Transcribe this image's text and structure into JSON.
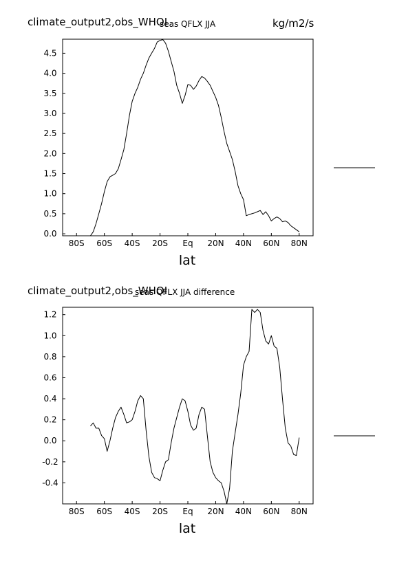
{
  "chart_data": [
    {
      "type": "line",
      "title": "climate_output2,obs_WHOI",
      "subtitle": "seas QFLX JJA",
      "units": "kg/m2/s",
      "xlabel": "lat",
      "ylabel": "",
      "xlim": [
        -90,
        90
      ],
      "ylim": [
        -0.05,
        4.85
      ],
      "xticks": [
        -80,
        -60,
        -40,
        -20,
        0,
        20,
        40,
        60,
        80
      ],
      "xticklabels": [
        "80S",
        "60S",
        "40S",
        "20S",
        "Eq",
        "20N",
        "40N",
        "60N",
        "80N"
      ],
      "yticks": [
        0,
        0.5,
        1,
        1.5,
        2,
        2.5,
        3,
        3.5,
        4,
        4.5
      ],
      "yticklabels": [
        "0.0",
        "0.5",
        "1.0",
        "1.5",
        "2.0",
        "2.5",
        "3.0",
        "3.5",
        "4.0",
        "4.5"
      ],
      "legend": "right",
      "series": [
        {
          "x": [
            -70,
            -68,
            -66,
            -64,
            -62,
            -60,
            -58,
            -56,
            -54,
            -52,
            -50,
            -48,
            -46,
            -44,
            -42,
            -40,
            -38,
            -36,
            -34,
            -32,
            -30,
            -28,
            -26,
            -24,
            -22,
            -20,
            -18,
            -16,
            -14,
            -12,
            -10,
            -8,
            -6,
            -4,
            -2,
            0,
            2,
            4,
            6,
            8,
            10,
            12,
            14,
            16,
            18,
            20,
            22,
            24,
            26,
            28,
            30,
            32,
            34,
            36,
            38,
            40,
            42,
            44,
            46,
            48,
            50,
            52,
            54,
            56,
            58,
            60,
            62,
            64,
            66,
            68,
            70,
            72,
            74,
            76,
            78,
            80
          ],
          "values": [
            -0.05,
            0.05,
            0.25,
            0.5,
            0.75,
            1.05,
            1.3,
            1.42,
            1.46,
            1.5,
            1.62,
            1.85,
            2.1,
            2.5,
            2.95,
            3.3,
            3.5,
            3.65,
            3.85,
            4.0,
            4.2,
            4.38,
            4.5,
            4.62,
            4.78,
            4.82,
            4.84,
            4.75,
            4.55,
            4.3,
            4.05,
            3.7,
            3.5,
            3.25,
            3.45,
            3.72,
            3.7,
            3.6,
            3.68,
            3.82,
            3.92,
            3.88,
            3.8,
            3.7,
            3.55,
            3.4,
            3.2,
            2.9,
            2.55,
            2.25,
            2.05,
            1.85,
            1.55,
            1.2,
            1.0,
            0.85,
            0.45,
            0.48,
            0.5,
            0.52,
            0.55,
            0.58,
            0.48,
            0.55,
            0.45,
            0.32,
            0.38,
            0.42,
            0.38,
            0.3,
            0.32,
            0.28,
            0.2,
            0.15,
            0.1,
            0.05
          ]
        }
      ]
    },
    {
      "type": "line",
      "title": "climate_output2,obs_WHOI",
      "subtitle": "seas QFLX JJA difference",
      "units": "",
      "xlabel": "lat",
      "ylabel": "",
      "xlim": [
        -90,
        90
      ],
      "ylim": [
        -0.6,
        1.27
      ],
      "xticks": [
        -80,
        -60,
        -40,
        -20,
        0,
        20,
        40,
        60,
        80
      ],
      "xticklabels": [
        "80S",
        "60S",
        "40S",
        "20S",
        "Eq",
        "20N",
        "40N",
        "60N",
        "80N"
      ],
      "yticks": [
        -0.4,
        -0.2,
        0,
        0.2,
        0.4,
        0.6,
        0.8,
        1.0,
        1.2
      ],
      "yticklabels": [
        "-0.4",
        "-0.2",
        "0.0",
        "0.2",
        "0.4",
        "0.6",
        "0.8",
        "1.0",
        "1.2"
      ],
      "legend": "right",
      "series": [
        {
          "x": [
            -70,
            -68,
            -66,
            -64,
            -62,
            -60,
            -58,
            -56,
            -54,
            -52,
            -50,
            -48,
            -46,
            -44,
            -42,
            -40,
            -38,
            -36,
            -34,
            -32,
            -30,
            -28,
            -26,
            -24,
            -22,
            -20,
            -18,
            -16,
            -14,
            -12,
            -10,
            -8,
            -6,
            -4,
            -2,
            0,
            2,
            4,
            6,
            8,
            10,
            12,
            14,
            16,
            18,
            20,
            22,
            24,
            26,
            28,
            30,
            32,
            34,
            36,
            38,
            40,
            42,
            44,
            46,
            48,
            50,
            52,
            54,
            56,
            58,
            60,
            62,
            64,
            66,
            68,
            70,
            72,
            74,
            76,
            78,
            80
          ],
          "values": [
            0.14,
            0.17,
            0.12,
            0.12,
            0.05,
            0.02,
            -0.1,
            0.0,
            0.12,
            0.22,
            0.28,
            0.32,
            0.25,
            0.17,
            0.18,
            0.2,
            0.28,
            0.38,
            0.43,
            0.4,
            0.1,
            -0.15,
            -0.3,
            -0.35,
            -0.36,
            -0.38,
            -0.28,
            -0.2,
            -0.18,
            -0.02,
            0.12,
            0.22,
            0.32,
            0.4,
            0.38,
            0.28,
            0.15,
            0.1,
            0.12,
            0.25,
            0.32,
            0.3,
            0.05,
            -0.2,
            -0.3,
            -0.35,
            -0.38,
            -0.4,
            -0.48,
            -0.6,
            -0.45,
            -0.1,
            0.08,
            0.25,
            0.45,
            0.72,
            0.8,
            0.85,
            1.25,
            1.22,
            1.25,
            1.22,
            1.05,
            0.95,
            0.92,
            1.0,
            0.9,
            0.88,
            0.7,
            0.4,
            0.12,
            -0.02,
            -0.05,
            -0.13,
            -0.14,
            0.03
          ]
        }
      ]
    }
  ]
}
